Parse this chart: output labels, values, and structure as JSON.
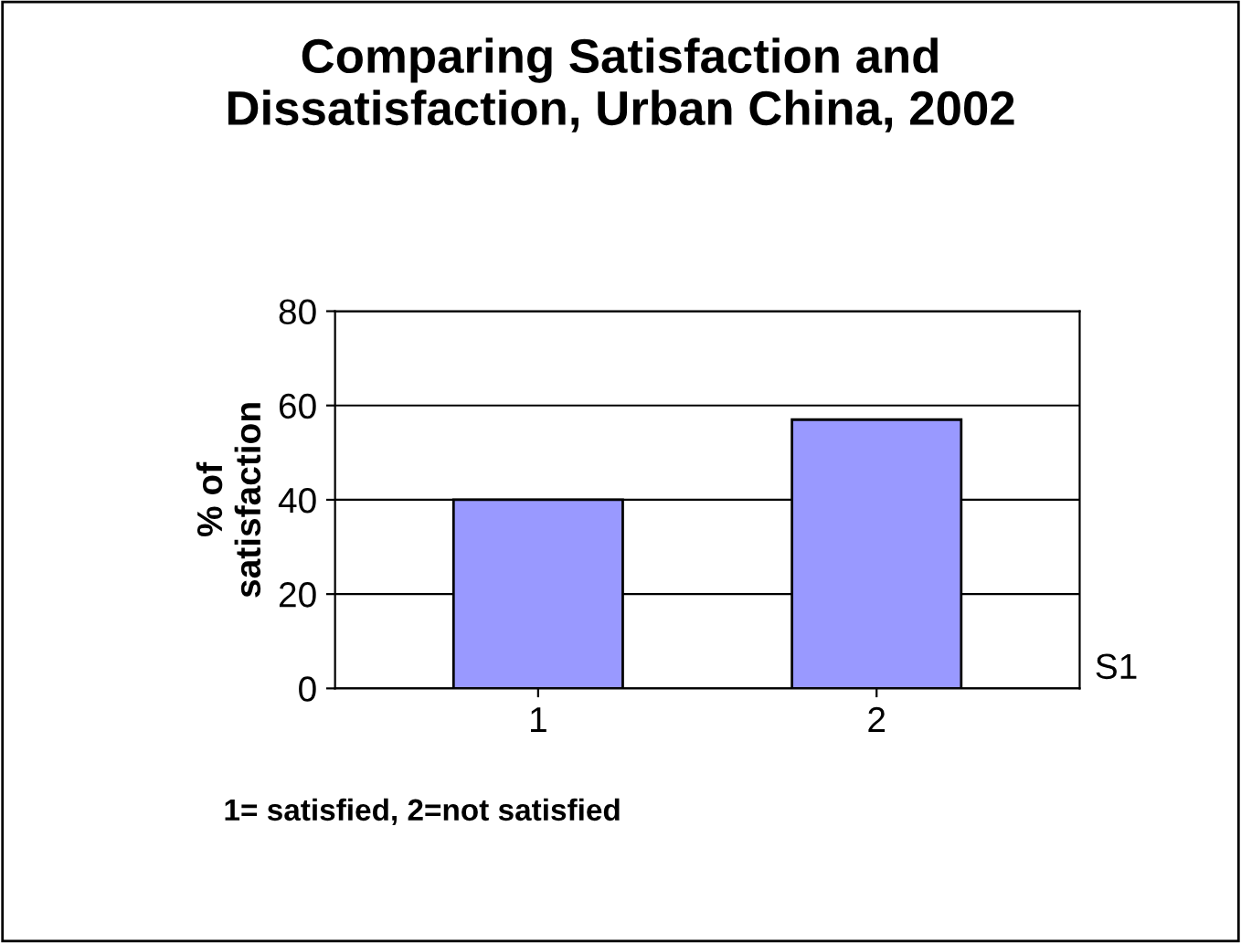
{
  "chart_data": {
    "type": "bar",
    "title": "Comparing Satisfaction and\nDissatisfaction, Urban China, 2002",
    "ylabel": "% of\nsatisfaction",
    "categories": [
      "1",
      "2"
    ],
    "series": [
      {
        "name": "S1",
        "color": "#9999ff",
        "values": [
          40,
          57
        ]
      }
    ],
    "ylim": [
      0,
      80
    ],
    "yticks": [
      0,
      20,
      40,
      60,
      80
    ],
    "grid": "y",
    "annotations": [
      "1= satisfied, 2=not satisfied"
    ]
  }
}
